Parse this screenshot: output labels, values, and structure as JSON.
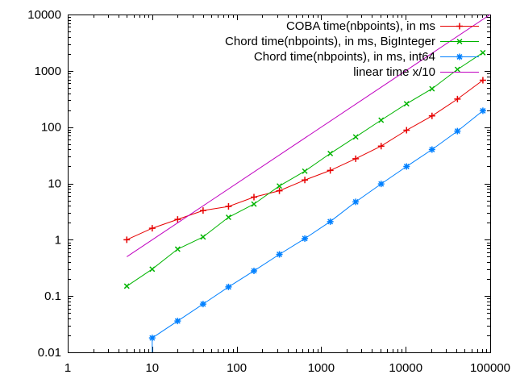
{
  "chart_data": {
    "type": "line",
    "title": "",
    "xlabel": "",
    "ylabel": "",
    "x_scale": "log",
    "y_scale": "log",
    "xlim": [
      1,
      100000
    ],
    "ylim": [
      0.01,
      10000
    ],
    "x_ticks": [
      1,
      10,
      100,
      1000,
      10000,
      100000
    ],
    "x_tick_labels": [
      "1",
      "10",
      "100",
      "1000",
      "10000",
      "100000"
    ],
    "y_ticks": [
      0.01,
      0.1,
      1,
      10,
      100,
      1000,
      10000
    ],
    "y_tick_labels": [
      "0.01",
      "0.1",
      "1",
      "10",
      "100",
      "1000",
      "10000"
    ],
    "minor_ticks": true,
    "grid": false,
    "legend_position": "top-right-inside",
    "axis_color": "#000000",
    "series": [
      {
        "name": "COBA time(nbpoints), in ms",
        "color": "#e60000",
        "marker": "plus",
        "x": [
          5,
          10,
          20,
          40,
          80,
          160,
          320,
          640,
          1280,
          2560,
          5120,
          10240,
          20480,
          40960,
          81920
        ],
        "y": [
          1.0,
          1.6,
          2.3,
          3.3,
          3.9,
          5.7,
          7.4,
          11.5,
          17,
          27.5,
          46,
          88,
          158,
          315,
          680
        ]
      },
      {
        "name": "Chord time(nbpoints), in ms, BigInteger",
        "color": "#00b400",
        "marker": "cross",
        "x": [
          5,
          10,
          20,
          40,
          80,
          160,
          320,
          640,
          1280,
          2560,
          5120,
          10240,
          20480,
          40960,
          81920
        ],
        "y": [
          0.15,
          0.3,
          0.68,
          1.12,
          2.5,
          4.3,
          9,
          16.5,
          34,
          67,
          133,
          260,
          480,
          1060,
          2100
        ]
      },
      {
        "name": "Chord time(nbpoints), in ms, int64",
        "color": "#0080ff",
        "marker": "asterisk",
        "clipped_entry": {
          "x": 10,
          "y_from": 0.01
        },
        "x": [
          10,
          20,
          40,
          80,
          160,
          320,
          640,
          1280,
          2560,
          5120,
          10240,
          20480,
          40960,
          81920
        ],
        "y": [
          0.018,
          0.036,
          0.072,
          0.145,
          0.28,
          0.55,
          1.05,
          2.1,
          4.7,
          9.8,
          20,
          40,
          85,
          195
        ]
      },
      {
        "name": "linear time x/10",
        "color": "#c000c0",
        "marker": "none",
        "x": [
          5,
          100000
        ],
        "y": [
          0.5,
          10000
        ]
      }
    ]
  }
}
